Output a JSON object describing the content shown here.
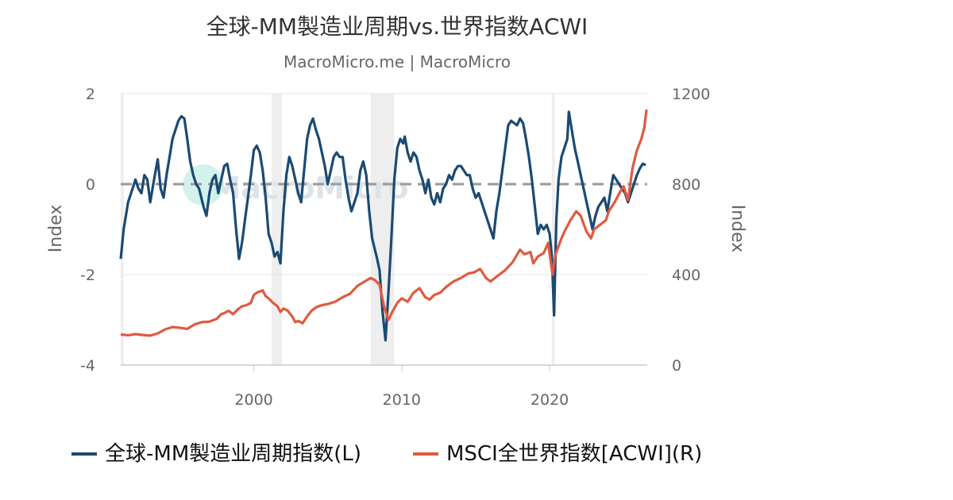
{
  "title": "全球-MM製造业周期vs.世界指数ACWI",
  "subtitle": "MacroMicro.me | MacroMicro",
  "watermark": "MacroMicro",
  "chart_data": {
    "type": "line",
    "x_ticks": [
      2000,
      2010,
      2020
    ],
    "x_range": [
      1991,
      2026.6
    ],
    "y_left": {
      "label": "Index",
      "range": [
        -4,
        2
      ],
      "ticks": [
        "-4",
        "-2",
        "0",
        "2"
      ]
    },
    "y_right": {
      "label": "Index",
      "range": [
        0,
        1200
      ],
      "ticks": [
        "0",
        "400",
        "800",
        "1200"
      ]
    },
    "zero_line": 0,
    "recessions": [
      [
        1990.7,
        1991.2
      ],
      [
        2001.2,
        2001.9
      ],
      [
        2007.9,
        2009.5
      ],
      [
        2020.15,
        2020.35
      ]
    ],
    "series": [
      {
        "name": "全球-MM製造业周期指数(L)",
        "axis": "left",
        "color": "#1a4a72",
        "points": [
          [
            1991.0,
            -1.65
          ],
          [
            1991.2,
            -1.0
          ],
          [
            1991.5,
            -0.4
          ],
          [
            1991.8,
            -0.1
          ],
          [
            1992.0,
            0.1
          ],
          [
            1992.2,
            -0.1
          ],
          [
            1992.4,
            -0.2
          ],
          [
            1992.6,
            0.2
          ],
          [
            1992.8,
            0.1
          ],
          [
            1993.0,
            -0.4
          ],
          [
            1993.2,
            0.0
          ],
          [
            1993.5,
            0.55
          ],
          [
            1993.7,
            -0.1
          ],
          [
            1993.9,
            -0.3
          ],
          [
            1994.1,
            0.2
          ],
          [
            1994.3,
            0.6
          ],
          [
            1994.5,
            1.0
          ],
          [
            1994.7,
            1.2
          ],
          [
            1994.9,
            1.4
          ],
          [
            1995.1,
            1.5
          ],
          [
            1995.3,
            1.45
          ],
          [
            1995.5,
            1.0
          ],
          [
            1995.7,
            0.5
          ],
          [
            1995.9,
            0.2
          ],
          [
            1996.1,
            0.0
          ],
          [
            1996.3,
            -0.1
          ],
          [
            1996.6,
            -0.5
          ],
          [
            1996.8,
            -0.7
          ],
          [
            1997.0,
            -0.2
          ],
          [
            1997.2,
            0.1
          ],
          [
            1997.4,
            0.2
          ],
          [
            1997.6,
            -0.2
          ],
          [
            1997.8,
            0.1
          ],
          [
            1998.0,
            0.4
          ],
          [
            1998.2,
            0.45
          ],
          [
            1998.4,
            0.1
          ],
          [
            1998.6,
            -0.2
          ],
          [
            1998.8,
            -1.0
          ],
          [
            1999.0,
            -1.65
          ],
          [
            1999.2,
            -1.3
          ],
          [
            1999.4,
            -0.8
          ],
          [
            1999.6,
            -0.3
          ],
          [
            1999.8,
            0.2
          ],
          [
            2000.0,
            0.75
          ],
          [
            2000.2,
            0.85
          ],
          [
            2000.4,
            0.7
          ],
          [
            2000.6,
            0.3
          ],
          [
            2000.8,
            -0.3
          ],
          [
            2001.0,
            -1.1
          ],
          [
            2001.2,
            -1.3
          ],
          [
            2001.4,
            -1.6
          ],
          [
            2001.6,
            -1.5
          ],
          [
            2001.8,
            -1.75
          ],
          [
            2002.0,
            -0.6
          ],
          [
            2002.2,
            0.2
          ],
          [
            2002.4,
            0.6
          ],
          [
            2002.6,
            0.4
          ],
          [
            2002.8,
            0.1
          ],
          [
            2003.0,
            -0.2
          ],
          [
            2003.2,
            -0.4
          ],
          [
            2003.4,
            0.3
          ],
          [
            2003.6,
            1.0
          ],
          [
            2003.8,
            1.3
          ],
          [
            2004.0,
            1.45
          ],
          [
            2004.2,
            1.2
          ],
          [
            2004.4,
            1.0
          ],
          [
            2004.6,
            0.7
          ],
          [
            2004.8,
            0.4
          ],
          [
            2005.0,
            0.0
          ],
          [
            2005.2,
            0.3
          ],
          [
            2005.4,
            0.6
          ],
          [
            2005.6,
            0.7
          ],
          [
            2005.8,
            0.6
          ],
          [
            2006.0,
            0.6
          ],
          [
            2006.2,
            0.1
          ],
          [
            2006.4,
            -0.3
          ],
          [
            2006.6,
            -0.6
          ],
          [
            2006.8,
            -0.4
          ],
          [
            2007.0,
            -0.2
          ],
          [
            2007.2,
            0.3
          ],
          [
            2007.4,
            0.5
          ],
          [
            2007.6,
            0.2
          ],
          [
            2007.8,
            -0.6
          ],
          [
            2008.0,
            -1.2
          ],
          [
            2008.3,
            -1.6
          ],
          [
            2008.5,
            -1.9
          ],
          [
            2008.7,
            -2.8
          ],
          [
            2008.9,
            -3.45
          ],
          [
            2009.1,
            -2.4
          ],
          [
            2009.3,
            -1.2
          ],
          [
            2009.5,
            0.1
          ],
          [
            2009.7,
            0.8
          ],
          [
            2009.9,
            1.0
          ],
          [
            2010.1,
            0.9
          ],
          [
            2010.2,
            1.05
          ],
          [
            2010.4,
            0.7
          ],
          [
            2010.6,
            0.5
          ],
          [
            2010.8,
            0.7
          ],
          [
            2011.0,
            0.6
          ],
          [
            2011.2,
            0.3
          ],
          [
            2011.4,
            0.1
          ],
          [
            2011.6,
            -0.2
          ],
          [
            2011.8,
            0.1
          ],
          [
            2012.0,
            -0.3
          ],
          [
            2012.2,
            -0.45
          ],
          [
            2012.4,
            -0.2
          ],
          [
            2012.6,
            -0.4
          ],
          [
            2012.8,
            -0.1
          ],
          [
            2013.0,
            0.0
          ],
          [
            2013.2,
            0.2
          ],
          [
            2013.4,
            0.1
          ],
          [
            2013.6,
            0.3
          ],
          [
            2013.8,
            0.4
          ],
          [
            2014.0,
            0.4
          ],
          [
            2014.2,
            0.3
          ],
          [
            2014.4,
            0.2
          ],
          [
            2014.6,
            0.2
          ],
          [
            2014.8,
            -0.1
          ],
          [
            2015.0,
            -0.3
          ],
          [
            2015.2,
            -0.2
          ],
          [
            2015.4,
            -0.4
          ],
          [
            2015.6,
            -0.6
          ],
          [
            2015.8,
            -0.8
          ],
          [
            2016.0,
            -1.0
          ],
          [
            2016.2,
            -1.2
          ],
          [
            2016.4,
            -0.6
          ],
          [
            2016.6,
            -0.2
          ],
          [
            2016.8,
            0.3
          ],
          [
            2017.0,
            0.8
          ],
          [
            2017.2,
            1.3
          ],
          [
            2017.4,
            1.4
          ],
          [
            2017.6,
            1.35
          ],
          [
            2017.8,
            1.3
          ],
          [
            2018.0,
            1.45
          ],
          [
            2018.2,
            1.35
          ],
          [
            2018.4,
            1.0
          ],
          [
            2018.6,
            0.6
          ],
          [
            2018.8,
            0.1
          ],
          [
            2019.0,
            -0.5
          ],
          [
            2019.2,
            -1.1
          ],
          [
            2019.4,
            -0.9
          ],
          [
            2019.6,
            -1.0
          ],
          [
            2019.8,
            -0.9
          ],
          [
            2020.0,
            -1.1
          ],
          [
            2020.15,
            -1.6
          ],
          [
            2020.3,
            -2.9
          ],
          [
            2020.45,
            -0.8
          ],
          [
            2020.6,
            0.1
          ],
          [
            2020.8,
            0.6
          ],
          [
            2021.0,
            0.8
          ],
          [
            2021.2,
            1.0
          ],
          [
            2021.3,
            1.6
          ],
          [
            2021.5,
            1.2
          ],
          [
            2021.7,
            0.8
          ],
          [
            2021.9,
            0.5
          ],
          [
            2022.1,
            0.2
          ],
          [
            2022.3,
            -0.1
          ],
          [
            2022.5,
            -0.4
          ],
          [
            2022.7,
            -0.7
          ],
          [
            2022.9,
            -1.0
          ],
          [
            2023.1,
            -0.7
          ],
          [
            2023.3,
            -0.5
          ],
          [
            2023.5,
            -0.4
          ],
          [
            2023.7,
            -0.3
          ],
          [
            2023.9,
            -0.6
          ],
          [
            2024.1,
            -0.2
          ],
          [
            2024.3,
            0.2
          ],
          [
            2024.5,
            0.1
          ],
          [
            2024.7,
            0.0
          ],
          [
            2024.9,
            -0.1
          ],
          [
            2025.1,
            -0.2
          ],
          [
            2025.3,
            -0.4
          ],
          [
            2025.5,
            -0.2
          ],
          [
            2025.7,
            0.0
          ],
          [
            2025.9,
            0.2
          ],
          [
            2026.1,
            0.35
          ],
          [
            2026.3,
            0.45
          ],
          [
            2026.5,
            0.42
          ]
        ]
      },
      {
        "name": "MSCI全世界指数[ACWI](R)",
        "axis": "right",
        "color": "#e05a3f",
        "points": [
          [
            1991.0,
            135
          ],
          [
            1991.5,
            132
          ],
          [
            1992.0,
            137
          ],
          [
            1992.5,
            133
          ],
          [
            1993.0,
            130
          ],
          [
            1993.5,
            140
          ],
          [
            1994.0,
            158
          ],
          [
            1994.5,
            168
          ],
          [
            1995.0,
            165
          ],
          [
            1995.5,
            160
          ],
          [
            1996.0,
            180
          ],
          [
            1996.5,
            190
          ],
          [
            1997.0,
            192
          ],
          [
            1997.5,
            205
          ],
          [
            1997.8,
            225
          ],
          [
            1998.0,
            230
          ],
          [
            1998.3,
            240
          ],
          [
            1998.6,
            225
          ],
          [
            1998.9,
            245
          ],
          [
            1999.2,
            260
          ],
          [
            1999.5,
            265
          ],
          [
            1999.8,
            275
          ],
          [
            2000.0,
            310
          ],
          [
            2000.2,
            320
          ],
          [
            2000.4,
            325
          ],
          [
            2000.6,
            330
          ],
          [
            2000.8,
            305
          ],
          [
            2001.0,
            295
          ],
          [
            2001.3,
            275
          ],
          [
            2001.6,
            260
          ],
          [
            2001.8,
            235
          ],
          [
            2002.0,
            250
          ],
          [
            2002.3,
            240
          ],
          [
            2002.6,
            215
          ],
          [
            2002.8,
            190
          ],
          [
            2003.0,
            195
          ],
          [
            2003.3,
            185
          ],
          [
            2003.6,
            215
          ],
          [
            2003.9,
            240
          ],
          [
            2004.2,
            255
          ],
          [
            2004.6,
            265
          ],
          [
            2005.0,
            270
          ],
          [
            2005.5,
            280
          ],
          [
            2006.0,
            300
          ],
          [
            2006.5,
            315
          ],
          [
            2007.0,
            350
          ],
          [
            2007.5,
            370
          ],
          [
            2007.9,
            385
          ],
          [
            2008.2,
            375
          ],
          [
            2008.5,
            355
          ],
          [
            2008.8,
            260
          ],
          [
            2009.1,
            200
          ],
          [
            2009.4,
            240
          ],
          [
            2009.7,
            275
          ],
          [
            2010.0,
            295
          ],
          [
            2010.4,
            280
          ],
          [
            2010.8,
            320
          ],
          [
            2011.2,
            340
          ],
          [
            2011.6,
            300
          ],
          [
            2011.9,
            290
          ],
          [
            2012.2,
            310
          ],
          [
            2012.6,
            320
          ],
          [
            2013.0,
            345
          ],
          [
            2013.5,
            370
          ],
          [
            2014.0,
            385
          ],
          [
            2014.5,
            405
          ],
          [
            2014.9,
            410
          ],
          [
            2015.3,
            425
          ],
          [
            2015.7,
            385
          ],
          [
            2016.0,
            370
          ],
          [
            2016.5,
            395
          ],
          [
            2017.0,
            420
          ],
          [
            2017.5,
            455
          ],
          [
            2018.0,
            510
          ],
          [
            2018.3,
            490
          ],
          [
            2018.7,
            500
          ],
          [
            2018.9,
            450
          ],
          [
            2019.2,
            480
          ],
          [
            2019.6,
            495
          ],
          [
            2019.9,
            540
          ],
          [
            2020.2,
            400
          ],
          [
            2020.4,
            490
          ],
          [
            2020.8,
            560
          ],
          [
            2021.0,
            590
          ],
          [
            2021.4,
            640
          ],
          [
            2021.8,
            680
          ],
          [
            2022.1,
            660
          ],
          [
            2022.5,
            590
          ],
          [
            2022.8,
            560
          ],
          [
            2023.0,
            600
          ],
          [
            2023.4,
            620
          ],
          [
            2023.8,
            640
          ],
          [
            2024.0,
            680
          ],
          [
            2024.4,
            720
          ],
          [
            2024.8,
            770
          ],
          [
            2025.0,
            790
          ],
          [
            2025.3,
            730
          ],
          [
            2025.6,
            870
          ],
          [
            2025.9,
            950
          ],
          [
            2026.2,
            1000
          ],
          [
            2026.4,
            1050
          ],
          [
            2026.55,
            1130
          ]
        ]
      }
    ],
    "legend": {
      "position": "bottom"
    }
  }
}
